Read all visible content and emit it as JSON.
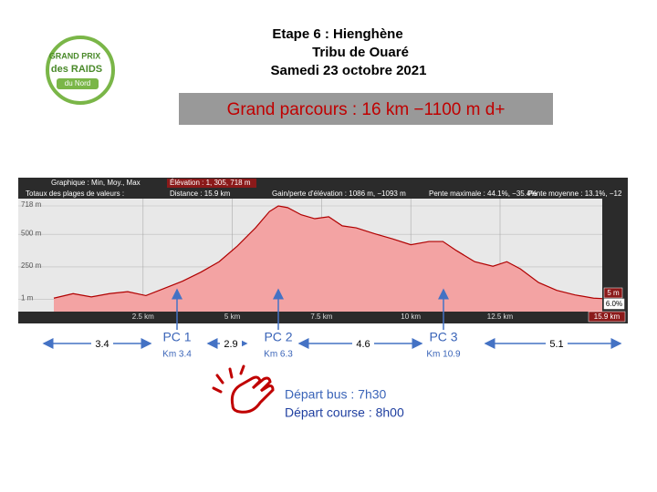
{
  "header": {
    "lines": [
      "Etape 6 : Hienghène",
      "Tribu de Ouaré",
      "Samedi 23 octobre 2021"
    ]
  },
  "logo": {
    "lines": [
      "GRAND PRIX",
      "des RAIDS",
      "du Nord"
    ]
  },
  "course": "Grand parcours : 16 km −1100 m d+",
  "chart_data": {
    "type": "area",
    "info": [
      "Graphique : Min, Moy., Max",
      "Élévation : 1, 305, 718 m",
      "Totaux des plages de valeurs :",
      "Distance : 15.9 km",
      "Gain/perte d'élévation : 1086 m, −1093 m",
      "Pente maximale : 44.1%, −35.4%",
      "Pente moyenne : 13.1%, −12"
    ],
    "badges": [
      "5 m",
      "6.0%",
      "15.9 km"
    ],
    "x": [
      0,
      0.54,
      1.05,
      1.56,
      2.07,
      2.58,
      3.09,
      3.6,
      4.12,
      4.63,
      5.14,
      5.65,
      6.04,
      6.29,
      6.55,
      6.93,
      7.31,
      7.7,
      8.08,
      8.47,
      8.98,
      9.49,
      10.0,
      10.51,
      10.9,
      11.28,
      11.79,
      12.3,
      12.69,
      13.07,
      13.58,
      14.09,
      14.6,
      15.12,
      15.9
    ],
    "values": [
      10,
      45,
      20,
      45,
      60,
      30,
      85,
      140,
      210,
      290,
      410,
      550,
      675,
      718,
      705,
      650,
      620,
      635,
      565,
      550,
      505,
      465,
      420,
      445,
      445,
      375,
      290,
      255,
      290,
      235,
      130,
      70,
      35,
      10,
      1
    ],
    "color": "#f3a3a3",
    "xlim": [
      0,
      15.9
    ],
    "ylim": [
      -100,
      760
    ],
    "xticks": [
      {
        "value": 2.5,
        "label": "2.5 km"
      },
      {
        "value": 5,
        "label": "5 km"
      },
      {
        "value": 7.5,
        "label": "7.5 km"
      },
      {
        "value": 10,
        "label": "10 km"
      },
      {
        "value": 12.5,
        "label": "12.5 km"
      }
    ],
    "yticks": [
      {
        "value": 1,
        "label": "1 m"
      },
      {
        "value": 250,
        "label": "250 m"
      },
      {
        "value": 500,
        "label": "500 m"
      },
      {
        "value": 718,
        "label": "718 m"
      }
    ],
    "grid": true
  },
  "checkpoints": [
    {
      "label": "PC 1",
      "km": "Km 3.4"
    },
    {
      "label": "PC 2",
      "km": "Km 6.3"
    },
    {
      "label": "PC 3",
      "km": "Km 10.9"
    }
  ],
  "segments": [
    3.4,
    2.9,
    4.6,
    5.1
  ],
  "departures": [
    "Départ bus : 7h30",
    "Départ course : 8h00"
  ]
}
